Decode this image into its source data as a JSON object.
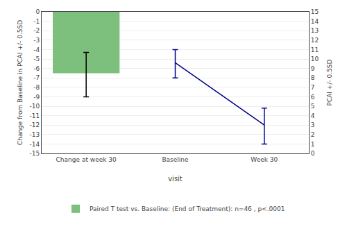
{
  "chart_data": {
    "type": "bar",
    "categories": [
      "Change at week 30",
      "Baseline",
      "Week 30"
    ],
    "xlabel": "visit",
    "ylabel": "Change from Baseline in PCAI +/- 0.5SD",
    "y2label": "PCAI +/- 0.5SD",
    "ylim": [
      -15,
      0
    ],
    "yticks": [
      0,
      -1,
      -2,
      -3,
      -4,
      -5,
      -6,
      -7,
      -8,
      -9,
      -10,
      -11,
      -12,
      -13,
      -14,
      -15
    ],
    "y2lim": [
      0,
      15
    ],
    "y2ticks": [
      0,
      1,
      2,
      3,
      4,
      5,
      6,
      7,
      8,
      9,
      10,
      11,
      12,
      13,
      14,
      15
    ],
    "grid": true,
    "legend": "bottom",
    "series": [
      {
        "name": "Paired T test vs. Baseline: (End of Treatment): n=46 , p<.0001",
        "type": "bar",
        "color": "#7dbf7d",
        "values": [
          -6.5,
          null,
          null
        ],
        "error_low": [
          -9.0,
          null,
          null
        ],
        "error_high": [
          -4.3,
          null,
          null
        ]
      },
      {
        "type": "line",
        "color": "#00008b",
        "values": [
          null,
          -5.4,
          -12.0
        ],
        "error_low": [
          null,
          -7.0,
          -14.0
        ],
        "error_high": [
          null,
          -4.0,
          -10.2
        ]
      }
    ]
  }
}
